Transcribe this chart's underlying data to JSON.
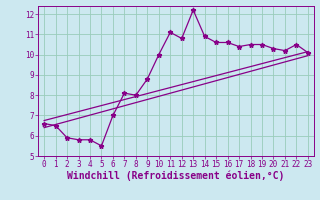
{
  "xlabel": "Windchill (Refroidissement éolien,°C)",
  "ylabel": "",
  "bg_color": "#cce8f0",
  "line_color": "#880088",
  "grid_color": "#99ccbb",
  "x_data": [
    0,
    1,
    2,
    3,
    4,
    5,
    6,
    7,
    8,
    9,
    10,
    11,
    12,
    13,
    14,
    15,
    16,
    17,
    18,
    19,
    20,
    21,
    22,
    23
  ],
  "y_data": [
    6.6,
    6.5,
    5.9,
    5.8,
    5.8,
    5.5,
    7.0,
    8.1,
    8.0,
    8.8,
    10.0,
    11.1,
    10.8,
    12.2,
    10.9,
    10.6,
    10.6,
    10.4,
    10.5,
    10.5,
    10.3,
    10.2,
    10.5,
    10.1
  ],
  "line1_x": [
    0,
    23
  ],
  "line1_y": [
    6.4,
    9.95
  ],
  "line2_x": [
    0,
    23
  ],
  "line2_y": [
    6.75,
    10.15
  ],
  "xlim_min": -0.5,
  "xlim_max": 23.5,
  "ylim_min": 5,
  "ylim_max": 12.4,
  "xticks": [
    0,
    1,
    2,
    3,
    4,
    5,
    6,
    7,
    8,
    9,
    10,
    11,
    12,
    13,
    14,
    15,
    16,
    17,
    18,
    19,
    20,
    21,
    22,
    23
  ],
  "yticks": [
    5,
    6,
    7,
    8,
    9,
    10,
    11,
    12
  ],
  "tick_fontsize": 5.5,
  "xlabel_fontsize": 7.0,
  "marker": "*",
  "marker_size": 3.5
}
